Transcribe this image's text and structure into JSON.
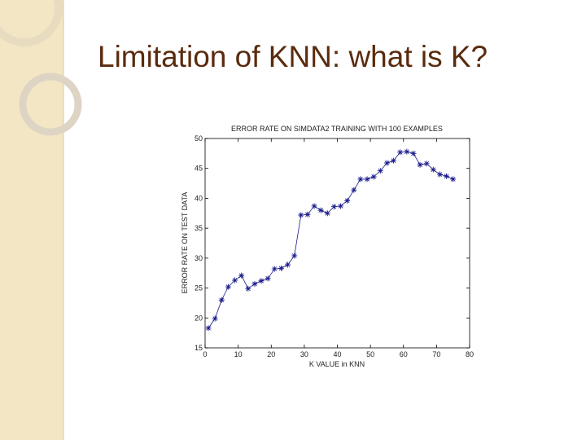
{
  "slide": {
    "title": "Limitation of KNN: what is K?"
  },
  "chart_data": {
    "type": "line",
    "title": "ERROR RATE ON SIMDATA2 TRAINING WITH 100 EXAMPLES",
    "xlabel": "K VALUE in KNN",
    "ylabel": "ERROR RATE ON TEST DATA",
    "x": [
      1,
      3,
      5,
      7,
      9,
      11,
      13,
      15,
      17,
      19,
      21,
      23,
      25,
      27,
      29,
      31,
      33,
      35,
      37,
      39,
      41,
      43,
      45,
      47,
      49,
      51,
      53,
      55,
      57,
      59,
      61,
      63,
      65,
      67,
      69,
      71,
      73,
      75
    ],
    "series": [
      {
        "color": "#1a1a8c",
        "marker": "+",
        "values": [
          18.3,
          19.9,
          23.0,
          25.2,
          26.3,
          27.1,
          24.9,
          25.7,
          26.2,
          26.6,
          28.2,
          28.3,
          28.9,
          30.4,
          37.2,
          37.3,
          38.7,
          38.0,
          37.5,
          38.6,
          38.7,
          39.6,
          41.4,
          43.2,
          43.2,
          43.6,
          44.6,
          45.9,
          46.3,
          47.7,
          47.8,
          47.5,
          45.6,
          45.8,
          44.8,
          44.0,
          43.7,
          43.2
        ]
      }
    ],
    "xlim": [
      0,
      80
    ],
    "xticks": [
      0,
      10,
      20,
      30,
      40,
      50,
      60,
      70,
      80
    ],
    "ylim": [
      15,
      50
    ],
    "yticks": [
      15,
      20,
      25,
      30,
      35,
      40,
      45,
      50
    ],
    "grid": false
  }
}
